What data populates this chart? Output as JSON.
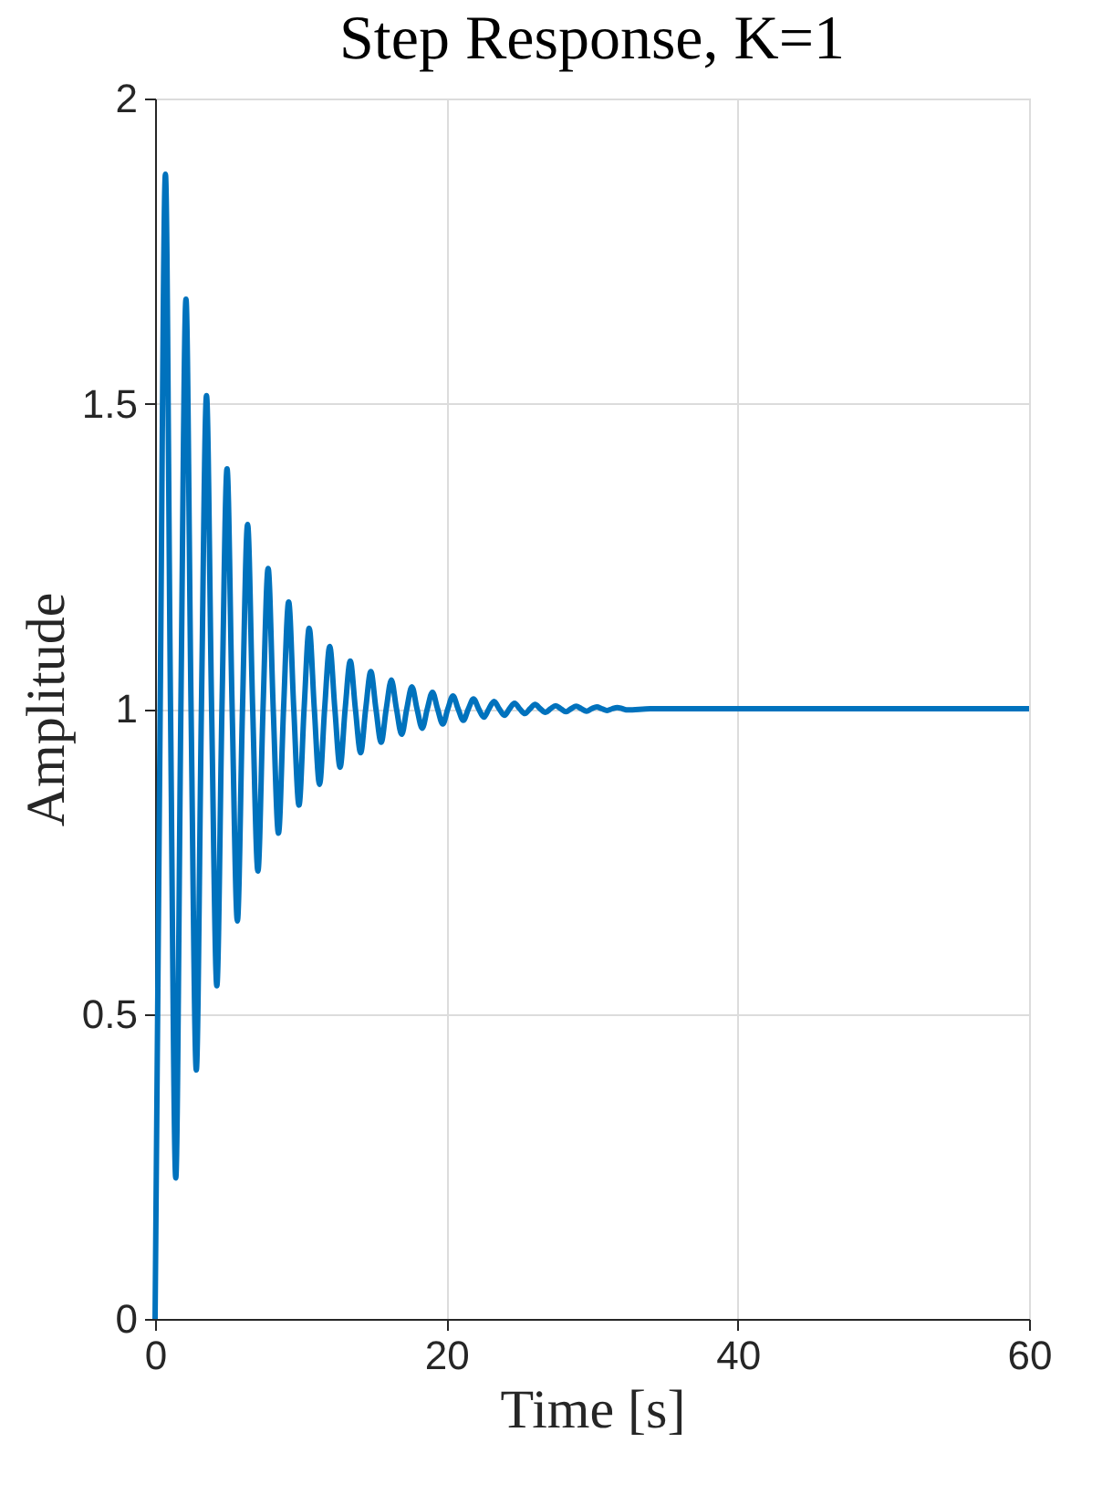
{
  "chart_data": {
    "type": "line",
    "title": "Step Response, K=1",
    "xlabel": "Time [s]",
    "ylabel": "Amplitude",
    "xlim": [
      0,
      60
    ],
    "xticks": [
      0,
      20,
      40,
      60
    ],
    "ylim": [
      0,
      2
    ],
    "yticks": [
      0,
      0.5,
      1,
      1.5,
      2
    ],
    "grid": true,
    "line_style": "solid",
    "series": [
      {
        "color": "#0072bd",
        "x": [
          0,
          0.35,
          0.71,
          1.06,
          1.42,
          1.77,
          2.12,
          2.47,
          2.83,
          3.18,
          3.53,
          3.88,
          4.24,
          4.59,
          4.94,
          5.29,
          5.65,
          6.0,
          6.35,
          6.7,
          7.06,
          7.41,
          7.76,
          8.11,
          8.47,
          8.82,
          9.17,
          9.52,
          9.88,
          10.23,
          10.58,
          10.93,
          11.29,
          11.64,
          11.99,
          12.34,
          12.7,
          13.05,
          13.4,
          13.75,
          14.11,
          14.46,
          14.81,
          15.16,
          15.52,
          15.87,
          16.22,
          16.57,
          16.93,
          17.28,
          17.63,
          17.98,
          18.34,
          18.69,
          19.04,
          19.39,
          19.75,
          20.1,
          20.45,
          20.8,
          21.16,
          21.51,
          21.86,
          22.21,
          22.57,
          22.92,
          23.27,
          23.62,
          23.98,
          24.33,
          24.68,
          25.03,
          25.39,
          25.74,
          26.09,
          26.44,
          26.8,
          27.15,
          27.5,
          27.85,
          28.21,
          28.56,
          28.91,
          29.26,
          29.62,
          29.97,
          30.32,
          30.67,
          31.03,
          31.38,
          31.73,
          32.08,
          32.44,
          34,
          60
        ],
        "values": [
          0,
          1,
          1.876,
          1,
          0.231,
          1,
          1.671,
          1,
          0.408,
          1,
          1.513,
          1,
          0.546,
          1,
          1.393,
          1,
          0.652,
          1,
          1.302,
          1,
          0.734,
          1,
          1.23,
          1,
          0.796,
          1,
          1.175,
          1,
          0.842,
          1,
          1.132,
          1,
          0.876,
          1,
          1.102,
          1,
          0.904,
          1,
          1.078,
          1,
          0.928,
          1,
          1.061,
          1,
          0.945,
          1,
          1.047,
          1,
          0.958,
          1,
          1.036,
          1,
          0.968,
          1,
          1.027,
          1,
          0.975,
          1,
          1.021,
          1,
          0.981,
          1,
          1.016,
          1,
          0.986,
          1,
          1.012,
          1,
          0.989,
          1,
          1.009,
          1,
          0.992,
          1,
          1.007,
          1,
          0.994,
          1,
          1.005,
          1,
          0.995,
          1,
          1.004,
          1,
          0.996,
          1,
          1.003,
          1,
          0.997,
          1,
          1.002,
          1,
          0.998,
          1,
          1
        ]
      }
    ]
  }
}
